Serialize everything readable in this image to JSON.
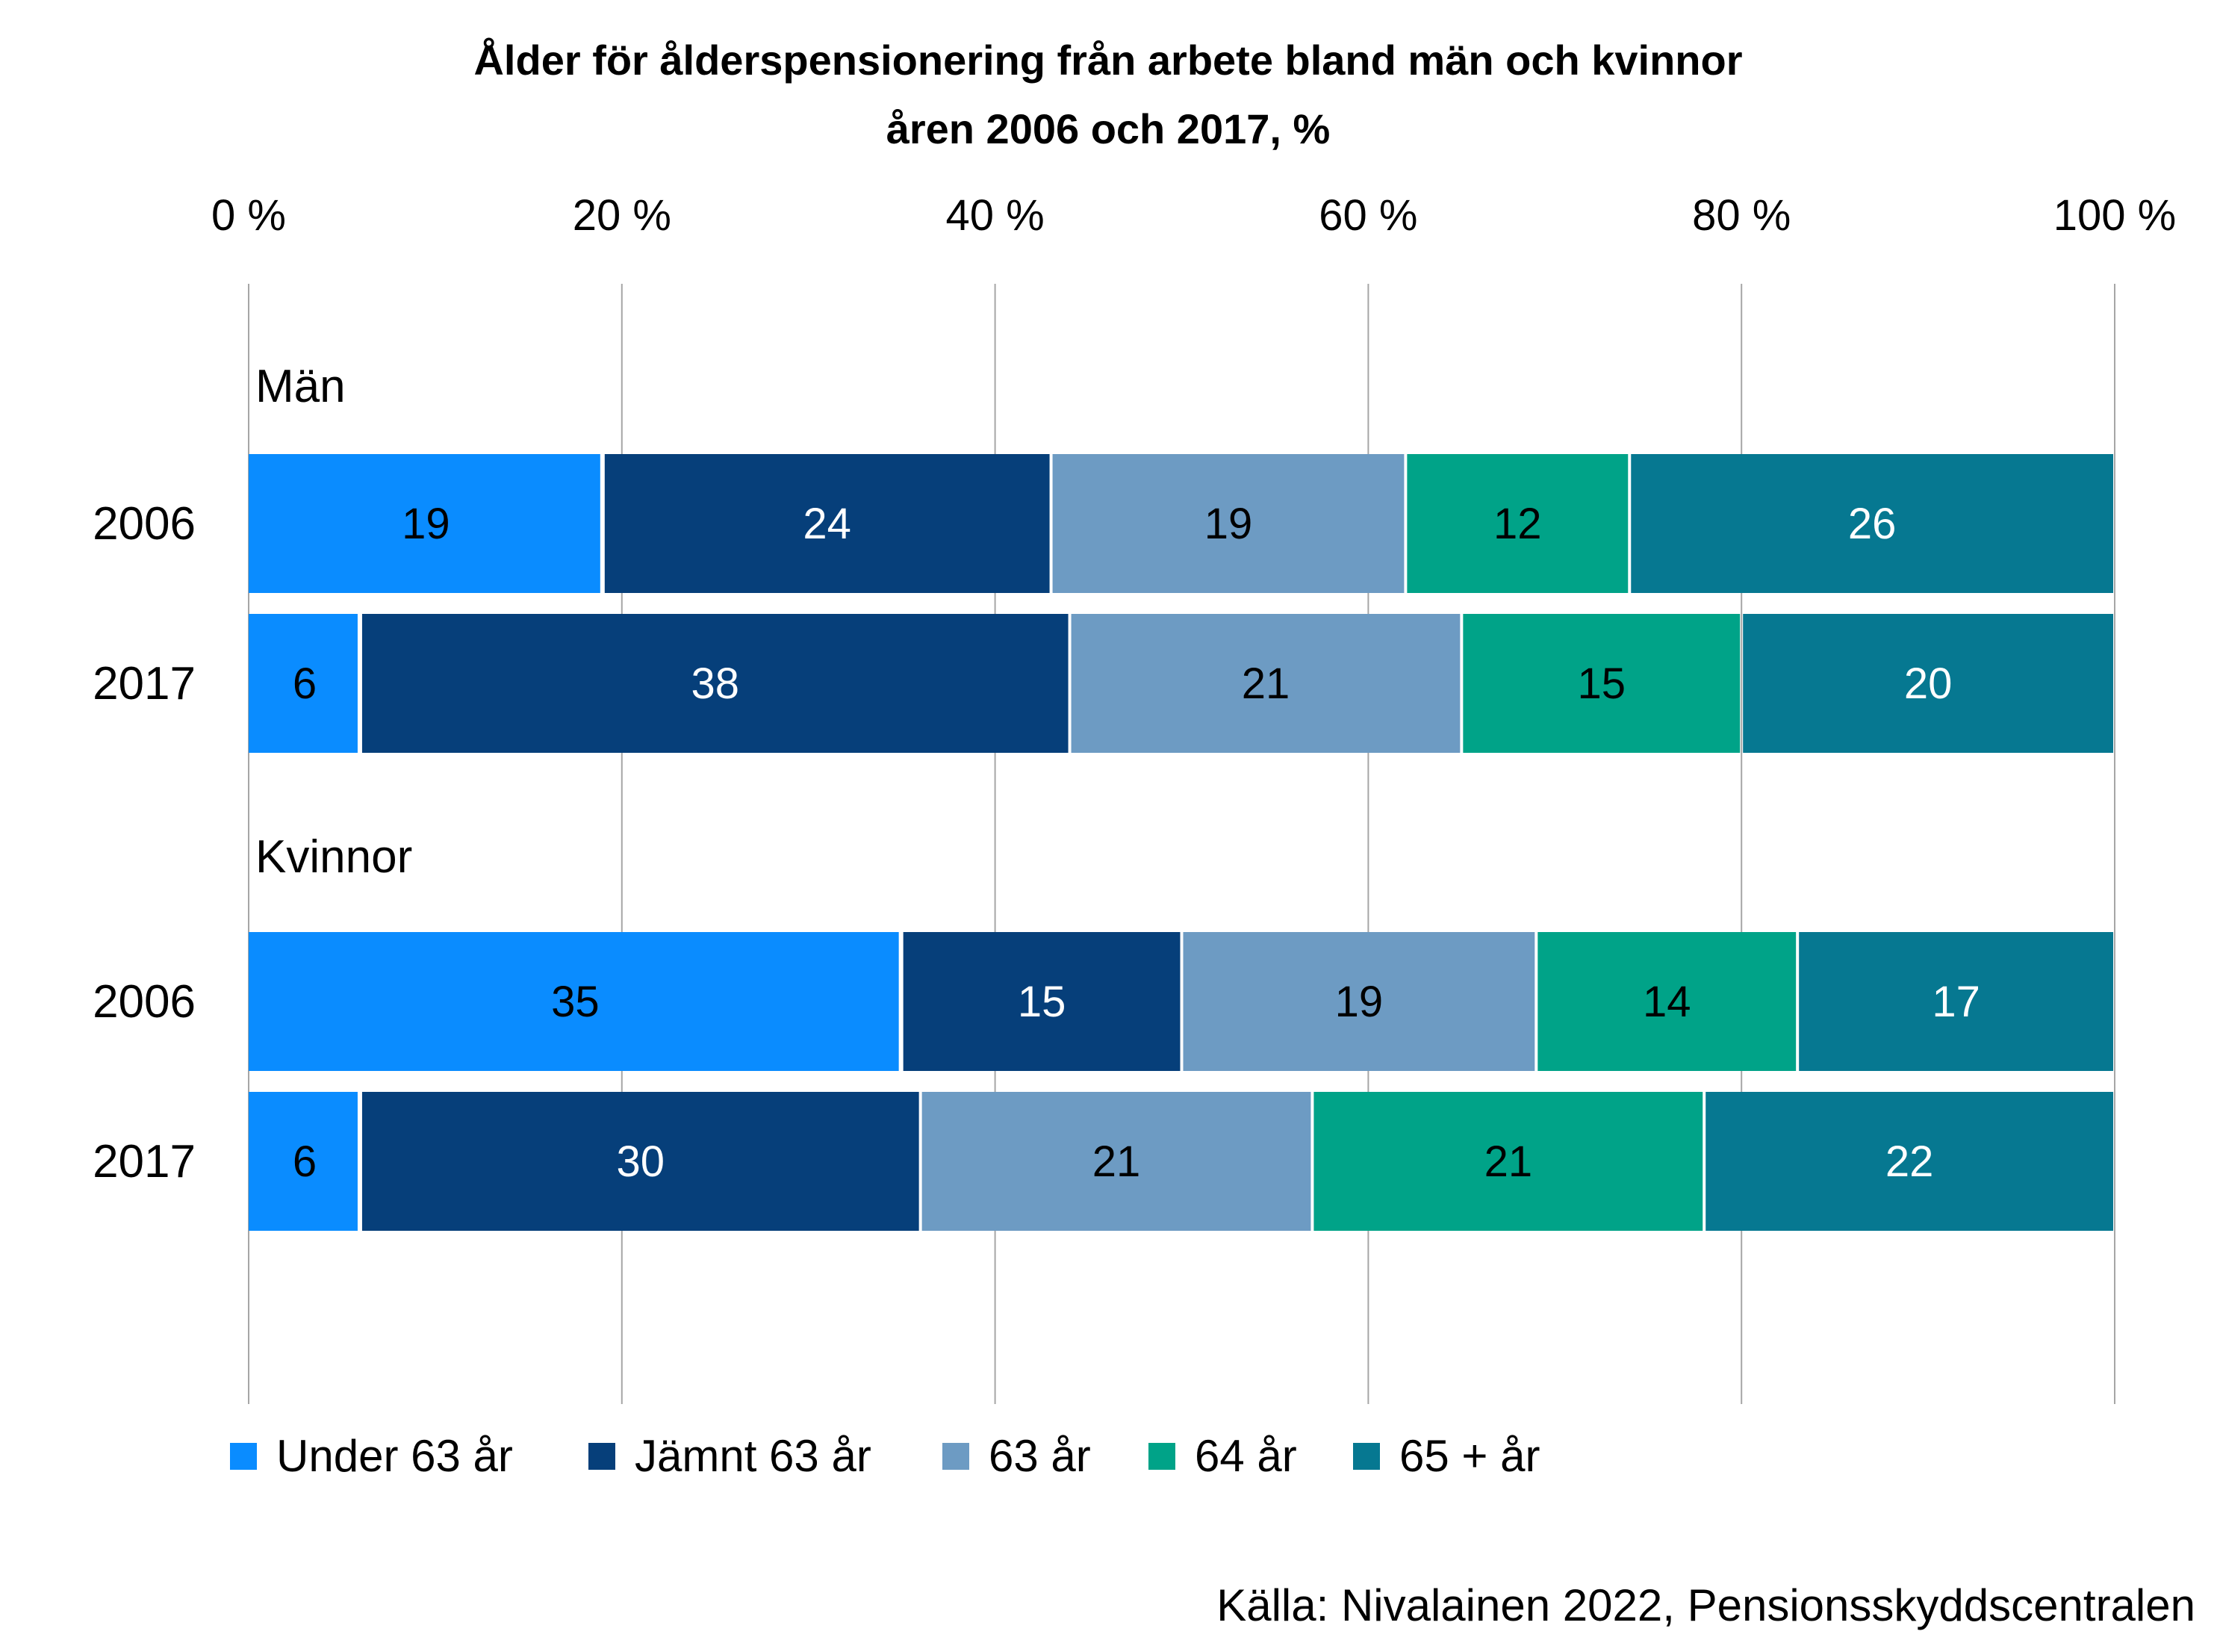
{
  "chart_data": {
    "type": "bar",
    "orientation": "horizontal",
    "stacked": "100%",
    "title_lines": [
      "Ålder för ålderspensionering från arbete bland män och kvinnor",
      "åren 2006 och 2017, %"
    ],
    "x_ticks": [
      "0 %",
      "20 %",
      "40 %",
      "60 %",
      "80 %",
      "100 %"
    ],
    "xlim": [
      0,
      100
    ],
    "grid": "vertical",
    "legend_position": "bottom",
    "groups": [
      {
        "label": "Män",
        "rows": [
          {
            "label": "2006",
            "values": [
              19,
              24,
              19,
              12,
              26
            ]
          },
          {
            "label": "2017",
            "values": [
              6,
              38,
              21,
              15,
              20
            ]
          }
        ]
      },
      {
        "label": "Kvinnor",
        "rows": [
          {
            "label": "2006",
            "values": [
              35,
              15,
              19,
              14,
              17
            ]
          },
          {
            "label": "2017",
            "values": [
              6,
              30,
              21,
              21,
              22
            ]
          }
        ]
      }
    ],
    "series": [
      {
        "name": "Under 63 år",
        "color": "#0a8cff",
        "label_color": "#000000"
      },
      {
        "name": "Jämnt 63 år",
        "color": "#063f7a",
        "label_color": "#ffffff"
      },
      {
        "name": "63 år",
        "color": "#6d9bc3",
        "label_color": "#000000"
      },
      {
        "name": "64 år",
        "color": "#00a388",
        "label_color": "#000000"
      },
      {
        "name": "65 + år",
        "color": "#067891",
        "label_color": "#ffffff"
      }
    ],
    "source": "Källa: Nivalainen 2022, Pensionsskyddscentralen"
  }
}
